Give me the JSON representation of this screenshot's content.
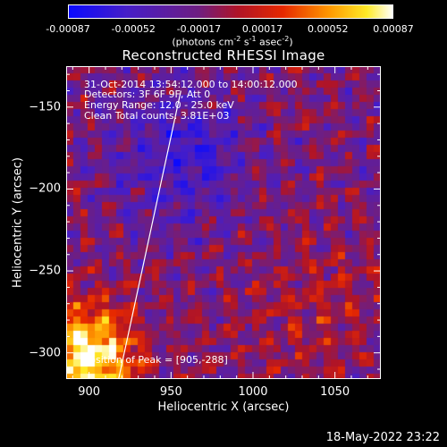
{
  "colorbar": {
    "ticks": [
      "-0.00087",
      "-0.00052",
      "-0.00017",
      "0.00017",
      "0.00052",
      "0.00087"
    ],
    "values": [
      -0.00087,
      -0.00052,
      -0.00017,
      0.00017,
      0.00052,
      0.00087
    ],
    "units": {
      "main": "(photons cm",
      "e1": "-2",
      "s": " s",
      "e2": "-1",
      "a": " asec",
      "e3": "-2",
      "end": ")"
    },
    "range": [
      -0.00087,
      0.00087
    ],
    "colormap": "blue-purple-red-yellow-white"
  },
  "title": "Reconstructed RHESSI Image",
  "annotations": {
    "time": "31-Oct-2014 13:54:12.000 to 14:00:12.000",
    "detectors": "Detectors: 3F 6F 9F, Att 0",
    "energy": "Energy Range: 12.0 - 25.0 keV",
    "clean": "Clean     Total counts: 3.81E+03",
    "peak": "Position of Peak = [905,-288]"
  },
  "footer": {
    "timestamp": "18-May-2022 23:22"
  },
  "chart_data": {
    "type": "heatmap",
    "title": "Reconstructed RHESSI Image",
    "xlabel": "Heliocentric X (arcsec)",
    "ylabel": "Heliocentric Y (arcsec)",
    "xlim": [
      886,
      1078
    ],
    "ylim": [
      -316,
      -125
    ],
    "x_ticks": [
      900,
      950,
      1000,
      1050
    ],
    "x_tick_labels": [
      "900",
      "950",
      "1000",
      "1050"
    ],
    "y_ticks": [
      -150,
      -200,
      -250,
      -300
    ],
    "y_tick_labels": [
      "−150",
      "−200",
      "−250",
      "−300"
    ],
    "limb_line": {
      "x": [
        918,
        956
      ],
      "y": [
        -316,
        -140
      ],
      "color": "#ffffff"
    },
    "peak": {
      "x": 905,
      "y": -288
    },
    "bright_region": "lower-left",
    "grid": false
  }
}
